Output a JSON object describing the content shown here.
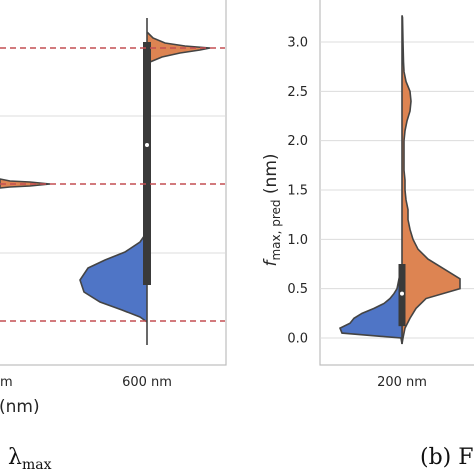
{
  "chart_data": [
    {
      "type": "violin",
      "panel": "left",
      "categories": [
        "600 nm"
      ],
      "partial_tick_label": "m",
      "xlabel": "(nm)",
      "reference_lines": "dashed red horizontal lines",
      "caption_symbol": "λ",
      "caption_subscript": "max",
      "grid": true,
      "series": [
        {
          "color": "#4f75c6"
        },
        {
          "color": "#dd8452"
        }
      ]
    },
    {
      "type": "violin",
      "panel": "right",
      "categories": [
        "200 nm"
      ],
      "ylabel_italic": "f",
      "ylabel_subscript": "max, pred",
      "ylabel_unit": " (nm)",
      "ylim": [
        -0.1,
        3.3
      ],
      "yticks": [
        "0.0",
        "0.5",
        "1.0",
        "1.5",
        "2.0",
        "2.5",
        "3.0"
      ],
      "grid": true,
      "caption_fragment": "(b) F",
      "series": [
        {
          "color": "#4f75c6"
        },
        {
          "color": "#dd8452"
        }
      ],
      "density_left_blue": [
        [
          0.0,
          1
        ],
        [
          0.05,
          60
        ],
        [
          0.1,
          62
        ],
        [
          0.15,
          52
        ],
        [
          0.2,
          48
        ],
        [
          0.25,
          40
        ],
        [
          0.3,
          28
        ],
        [
          0.35,
          18
        ],
        [
          0.4,
          12
        ],
        [
          0.45,
          8
        ],
        [
          0.5,
          5
        ],
        [
          0.55,
          4
        ],
        [
          0.6,
          3
        ],
        [
          0.65,
          2
        ],
        [
          0.7,
          1
        ]
      ],
      "density_right_orange": [
        [
          0.0,
          1
        ],
        [
          0.1,
          3
        ],
        [
          0.2,
          8
        ],
        [
          0.3,
          14
        ],
        [
          0.4,
          24
        ],
        [
          0.5,
          58
        ],
        [
          0.6,
          58
        ],
        [
          0.7,
          42
        ],
        [
          0.8,
          26
        ],
        [
          0.9,
          16
        ],
        [
          1.0,
          11
        ],
        [
          1.1,
          8
        ],
        [
          1.2,
          6
        ],
        [
          1.3,
          6
        ],
        [
          1.4,
          4
        ],
        [
          1.5,
          3
        ],
        [
          1.6,
          3
        ],
        [
          1.7,
          2
        ],
        [
          1.8,
          2
        ],
        [
          1.9,
          2
        ],
        [
          2.0,
          2
        ],
        [
          2.1,
          3
        ],
        [
          2.2,
          5
        ],
        [
          2.3,
          8
        ],
        [
          2.4,
          9
        ],
        [
          2.5,
          8
        ],
        [
          2.6,
          4
        ],
        [
          2.7,
          2
        ],
        [
          2.8,
          1.5
        ],
        [
          3.0,
          1
        ],
        [
          3.25,
          0.5
        ]
      ]
    }
  ]
}
